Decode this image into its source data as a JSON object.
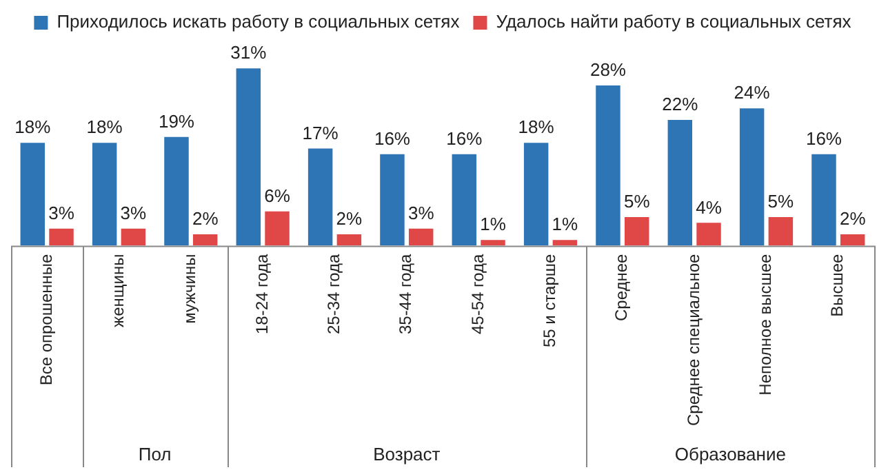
{
  "chart_data": {
    "type": "bar",
    "categories": [
      "Все опрошенные",
      "женщины",
      "мужчины",
      "18-24 года",
      "25-34 года",
      "35-44 года",
      "45-54 года",
      "55 и старше",
      "Среднее",
      "Среднее специальное",
      "Неполное высшее",
      "Высшее"
    ],
    "series": [
      {
        "name": "Приходилось искать работу в социальных сетях",
        "color": "#2e75b6",
        "values": [
          18,
          18,
          19,
          31,
          17,
          16,
          16,
          18,
          28,
          22,
          24,
          16
        ],
        "value_labels": [
          "18%",
          "18%",
          "19%",
          "31%",
          "17%",
          "16%",
          "16%",
          "18%",
          "28%",
          "22%",
          "24%",
          "16%"
        ]
      },
      {
        "name": "Удалось найти работу в социальных сетях",
        "color": "#e04848",
        "values": [
          3,
          3,
          2,
          6,
          2,
          3,
          1,
          1,
          5,
          4,
          5,
          2
        ],
        "value_labels": [
          "3%",
          "3%",
          "2%",
          "6%",
          "2%",
          "3%",
          "1%",
          "1%",
          "5%",
          "4%",
          "5%",
          "2%"
        ]
      }
    ],
    "annotations": [
      "Пол",
      "Возраст",
      "Образование"
    ],
    "legend": "top"
  }
}
